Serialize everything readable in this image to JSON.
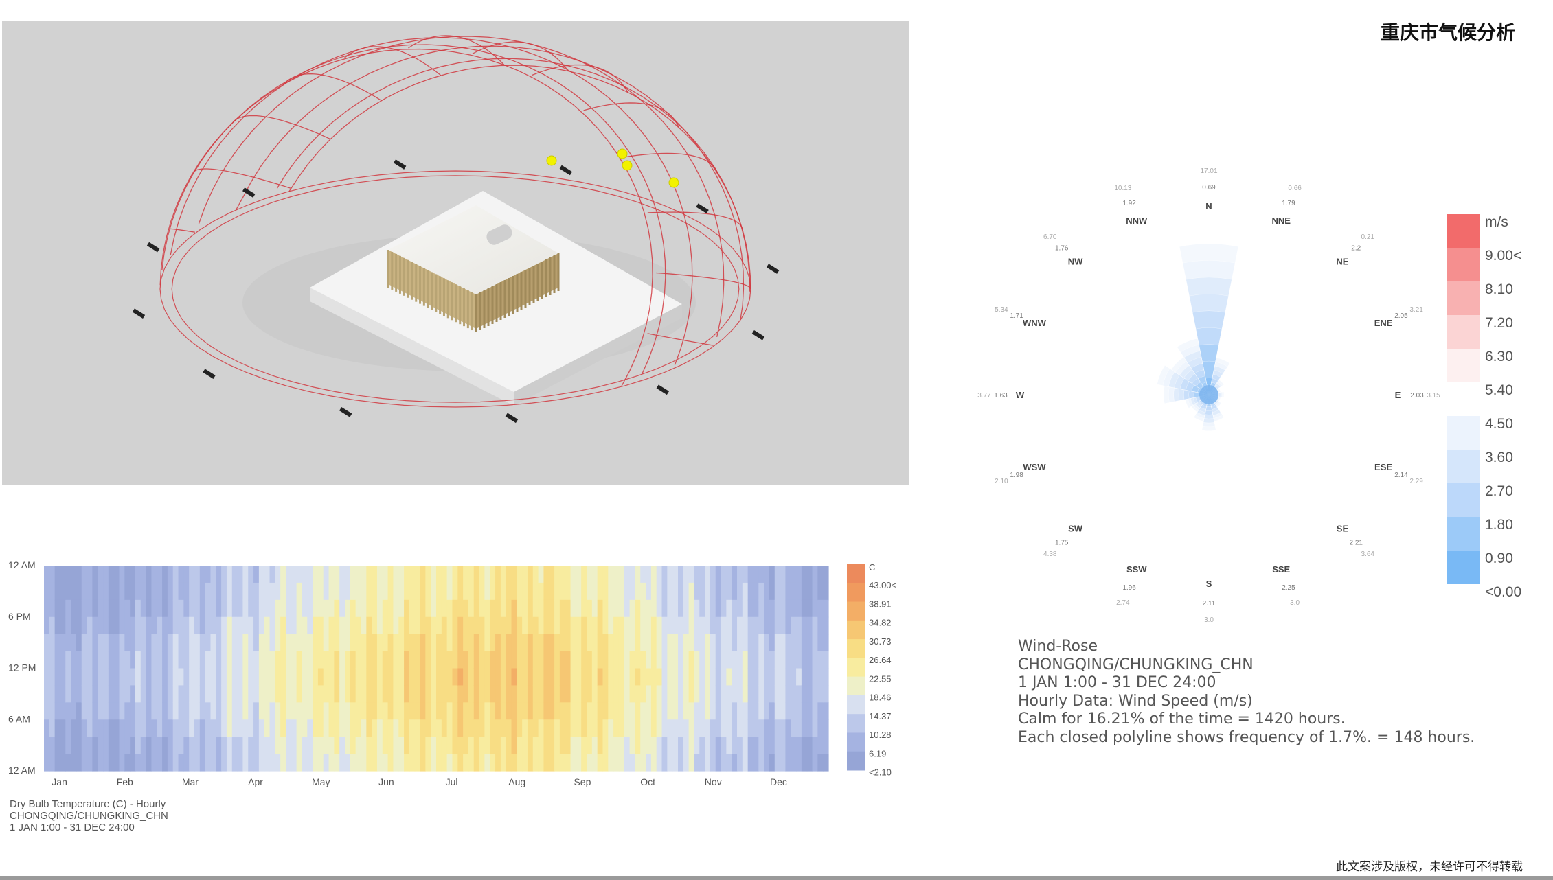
{
  "page": {
    "title": "重庆市气候分析",
    "copyright": "此文案涉及版权，未经许可不得转载"
  },
  "sunpath": {
    "dome_color": "#d1383f",
    "sun_color": "#f2f200",
    "label_color": "#222222"
  },
  "chart_data": [
    {
      "type": "heatmap",
      "title": "Dry Bulb Temperature (C) - Hourly",
      "caption_lines": [
        "Dry Bulb Temperature (C) - Hourly",
        "CHONGQING/CHUNGKING_CHN",
        "1 JAN 1:00 - 31 DEC 24:00"
      ],
      "x_tick_labels": [
        "Jan",
        "Feb",
        "Mar",
        "Apr",
        "May",
        "Jun",
        "Jul",
        "Aug",
        "Sep",
        "Oct",
        "Nov",
        "Dec"
      ],
      "y_tick_labels": [
        "12 AM",
        "6 PM",
        "12 PM",
        "6 AM",
        "12 AM"
      ],
      "unit": "C",
      "legend_values": [
        "43.00<",
        "38.91",
        "34.82",
        "30.73",
        "26.64",
        "22.55",
        "18.46",
        "14.37",
        "10.28",
        "6.19",
        "<2.10"
      ],
      "legend_colors": [
        "#ec8a5c",
        "#f09a5e",
        "#f3ae66",
        "#f6c773",
        "#f8dd84",
        "#f8ec9f",
        "#eef0c8",
        "#d8e0f0",
        "#bcc8ea",
        "#a5b3e1",
        "#96a5d6"
      ],
      "monthly_mean_temp_approx": [
        7.5,
        9.0,
        13.5,
        18.5,
        22.5,
        25.5,
        28.5,
        28.5,
        24.5,
        18.5,
        14.0,
        9.5
      ]
    },
    {
      "type": "windrose",
      "title": "Wind-Rose",
      "caption_lines": [
        "Wind-Rose",
        "CHONGQING/CHUNGKING_CHN",
        "1 JAN 1:00 - 31 DEC 24:00",
        "Hourly Data: Wind Speed (m/s)",
        "Calm for 16.21% of the time = 1420 hours.",
        "Each closed polyline shows frequency of 1.7%. = 148 hours."
      ],
      "directions": [
        "N",
        "NNE",
        "NE",
        "ENE",
        "E",
        "ESE",
        "SE",
        "SSE",
        "S",
        "SSW",
        "SW",
        "WSW",
        "W",
        "WNW",
        "NW",
        "NNW"
      ],
      "frequency_relative": [
        1.0,
        0.25,
        0.12,
        0.08,
        0.1,
        0.08,
        0.1,
        0.18,
        0.24,
        0.18,
        0.14,
        0.16,
        0.3,
        0.35,
        0.3,
        0.38
      ],
      "direction_values": [
        [
          "0.69",
          "17.01"
        ],
        [
          "1.79",
          "0.66"
        ],
        [
          "2.2",
          "0.21"
        ],
        [
          "2.05",
          "3.21"
        ],
        [
          "2.03",
          "3.15"
        ],
        [
          "2.14",
          "2.29"
        ],
        [
          "2.21",
          "3.64"
        ],
        [
          "2.25",
          "3.0"
        ],
        [
          "2.11",
          "3.0"
        ],
        [
          "1.96",
          "2.74"
        ],
        [
          "1.75",
          "4.38"
        ],
        [
          "1.98",
          "2.10"
        ],
        [
          "1.63",
          "3.77"
        ],
        [
          "1.71",
          "5.34"
        ],
        [
          "1.76",
          "6.70"
        ],
        [
          "1.92",
          "10.13"
        ]
      ],
      "legend_unit": "m/s",
      "legend_values": [
        "9.00<",
        "8.10",
        "7.20",
        "6.30",
        "5.40",
        "4.50",
        "3.60",
        "2.70",
        "1.80",
        "0.90",
        "<0.00"
      ],
      "legend_colors": [
        "#f26b6b",
        "#f58f8f",
        "#f8b1b1",
        "#fbd4d4",
        "#fdf0f0",
        "#ffffff",
        "#ecf3fd",
        "#d5e6fb",
        "#bcd8fa",
        "#9ccaf8",
        "#79b9f5"
      ]
    }
  ]
}
